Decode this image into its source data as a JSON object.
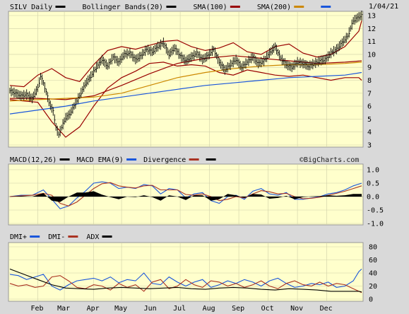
{
  "chart_data": [
    {
      "type": "ohlc",
      "panel": "price",
      "title": "SILV Daily",
      "date_label": "1/04/21",
      "ylim": [
        3,
        13
      ],
      "yticks": [
        3,
        4,
        5,
        6,
        7,
        8,
        9,
        10,
        11,
        12,
        13
      ],
      "grid": true,
      "legend_placement": "top",
      "legend": [
        {
          "label": "SILV Daily",
          "color": "#000000"
        },
        {
          "label": "Bollinger Bands(20)",
          "color": "#000000"
        },
        {
          "label": "SMA(100)",
          "color": "#990000"
        },
        {
          "label": "SMA(200)",
          "color": "#cc8800"
        },
        {
          "label": "",
          "color": "#1a56db"
        }
      ],
      "months": [
        "Feb",
        "Mar",
        "Apr",
        "May",
        "Jun",
        "Jul",
        "Aug",
        "Sep",
        "Oct",
        "Nov",
        "Dec"
      ],
      "x": [
        0,
        4,
        8,
        12,
        16,
        20,
        22,
        24,
        26,
        28,
        31,
        33,
        35,
        38,
        40,
        43,
        46,
        50,
        54,
        58,
        62,
        66,
        70,
        74,
        78,
        82,
        86,
        90,
        94,
        98,
        102,
        106,
        110,
        114,
        118,
        122,
        126,
        130,
        134,
        138,
        142,
        146,
        150,
        154,
        158,
        162,
        166,
        170,
        174,
        178,
        182,
        186,
        190,
        194,
        198,
        202,
        206,
        210,
        214,
        218,
        222,
        226,
        230,
        234,
        238,
        242,
        246,
        250,
        252
      ],
      "close": [
        7.2,
        7.0,
        6.8,
        6.9,
        6.6,
        7.4,
        8.3,
        7.8,
        7.1,
        6.3,
        5.6,
        4.4,
        3.8,
        4.6,
        5.1,
        5.4,
        6.0,
        6.8,
        7.7,
        8.3,
        9.0,
        9.6,
        9.1,
        9.8,
        9.4,
        10.0,
        10.1,
        9.6,
        9.9,
        10.4,
        10.2,
        10.6,
        10.9,
        10.0,
        10.5,
        9.9,
        9.5,
        9.8,
        10.1,
        9.6,
        9.9,
        10.4,
        9.4,
        8.8,
        9.2,
        9.6,
        9.0,
        9.4,
        9.8,
        9.3,
        9.5,
        10.1,
        10.6,
        9.7,
        9.2,
        9.0,
        9.4,
        9.3,
        9.1,
        9.3,
        9.5,
        9.6,
        10.1,
        10.4,
        10.9,
        11.4,
        12.6,
        12.9,
        13.0
      ],
      "series": [
        {
          "name": "Bollinger Bands(20)",
          "role": "upper",
          "color": "#990000",
          "x": [
            0,
            10,
            20,
            30,
            40,
            50,
            60,
            70,
            80,
            90,
            100,
            110,
            120,
            130,
            140,
            150,
            160,
            170,
            180,
            190,
            200,
            210,
            220,
            230,
            240,
            250,
            252
          ],
          "values": [
            7.6,
            7.5,
            8.4,
            8.9,
            8.2,
            7.9,
            9.2,
            10.3,
            10.6,
            10.4,
            10.7,
            11.0,
            11.1,
            10.6,
            10.3,
            10.5,
            10.9,
            10.2,
            10.0,
            10.6,
            10.8,
            10.1,
            9.8,
            10.0,
            10.6,
            11.8,
            12.6
          ]
        },
        {
          "name": "Bollinger Bands(20)",
          "role": "lower",
          "color": "#990000",
          "x": [
            0,
            10,
            20,
            30,
            40,
            50,
            60,
            70,
            80,
            90,
            100,
            110,
            120,
            130,
            140,
            150,
            160,
            170,
            180,
            190,
            200,
            210,
            220,
            230,
            240,
            250,
            252
          ],
          "values": [
            6.5,
            6.4,
            6.3,
            4.8,
            3.6,
            4.4,
            6.0,
            7.4,
            8.2,
            8.7,
            9.3,
            9.4,
            9.1,
            9.2,
            9.1,
            8.6,
            8.4,
            8.8,
            8.6,
            8.4,
            8.3,
            8.4,
            8.2,
            8.0,
            8.2,
            8.2,
            8.0
          ]
        },
        {
          "name": "SMA(100)",
          "color": "#990000",
          "x": [
            0,
            20,
            40,
            60,
            80,
            100,
            120,
            140,
            160,
            180,
            200,
            220,
            240,
            252
          ],
          "values": [
            6.6,
            6.6,
            6.5,
            6.8,
            7.6,
            8.5,
            9.3,
            9.7,
            9.9,
            9.7,
            9.5,
            9.3,
            9.4,
            9.5
          ]
        },
        {
          "name": "SMA(200)",
          "color": "#cc8800",
          "x": [
            0,
            20,
            40,
            60,
            80,
            100,
            120,
            140,
            160,
            180,
            200,
            220,
            240,
            252
          ],
          "values": [
            6.4,
            6.5,
            6.6,
            6.7,
            7.0,
            7.6,
            8.2,
            8.6,
            8.9,
            9.1,
            9.2,
            9.2,
            9.3,
            9.4
          ]
        },
        {
          "name": "",
          "color": "#1a56db",
          "x": [
            0,
            20,
            40,
            60,
            80,
            100,
            120,
            140,
            160,
            180,
            200,
            220,
            240,
            252
          ],
          "values": [
            5.4,
            5.7,
            6.0,
            6.4,
            6.7,
            7.0,
            7.3,
            7.6,
            7.8,
            8.0,
            8.2,
            8.3,
            8.4,
            8.6
          ]
        }
      ]
    },
    {
      "type": "line",
      "panel": "macd",
      "legend": [
        {
          "label": "MACD(12,26)",
          "color": "#000000"
        },
        {
          "label": "MACD EMA(9)",
          "color": "#1a56db"
        },
        {
          "label": "Divergence",
          "color": "#aa3322"
        },
        {
          "label": "",
          "color": "#000000"
        }
      ],
      "watermark": "©BigCharts.com",
      "ylim": [
        -1.0,
        1.0
      ],
      "yticks": [
        1.0,
        0.5,
        0.0,
        -0.5,
        -1.0
      ],
      "yticklabels": [
        "1.0",
        "0.5",
        "0.0",
        "-0.5",
        "-1.0"
      ],
      "series": [
        {
          "name": "MACD(12,26)",
          "color": "#1a56db",
          "x": [
            0,
            8,
            16,
            24,
            30,
            36,
            42,
            48,
            54,
            60,
            66,
            72,
            78,
            84,
            90,
            96,
            102,
            108,
            114,
            120,
            126,
            132,
            138,
            144,
            150,
            156,
            162,
            168,
            174,
            180,
            186,
            192,
            198,
            204,
            210,
            216,
            222,
            228,
            234,
            240,
            246,
            252
          ],
          "values": [
            0.0,
            0.05,
            0.05,
            0.25,
            -0.1,
            -0.45,
            -0.35,
            -0.05,
            0.2,
            0.5,
            0.55,
            0.5,
            0.3,
            0.35,
            0.3,
            0.45,
            0.4,
            0.1,
            0.3,
            0.25,
            -0.05,
            0.1,
            0.15,
            -0.15,
            -0.25,
            0.0,
            0.05,
            -0.1,
            0.2,
            0.3,
            0.1,
            0.05,
            0.15,
            -0.1,
            -0.1,
            -0.05,
            0.0,
            0.1,
            0.15,
            0.25,
            0.4,
            0.5
          ]
        },
        {
          "name": "MACD EMA(9)",
          "color": "#aa3322",
          "x": [
            0,
            8,
            16,
            24,
            30,
            36,
            42,
            48,
            54,
            60,
            66,
            72,
            78,
            84,
            90,
            96,
            102,
            108,
            114,
            120,
            126,
            132,
            138,
            144,
            150,
            156,
            162,
            168,
            174,
            180,
            186,
            192,
            198,
            204,
            210,
            216,
            222,
            228,
            234,
            240,
            246,
            252
          ],
          "values": [
            0.0,
            0.03,
            0.05,
            0.12,
            0.05,
            -0.25,
            -0.35,
            -0.2,
            0.05,
            0.3,
            0.48,
            0.52,
            0.4,
            0.35,
            0.32,
            0.4,
            0.42,
            0.25,
            0.25,
            0.25,
            0.08,
            0.05,
            0.1,
            0.0,
            -0.15,
            -0.1,
            0.0,
            -0.05,
            0.1,
            0.22,
            0.18,
            0.1,
            0.12,
            0.0,
            -0.08,
            -0.06,
            -0.02,
            0.05,
            0.12,
            0.2,
            0.3,
            0.4
          ]
        },
        {
          "name": "Divergence",
          "color": "#000000",
          "type": "bar",
          "x": [
            0,
            8,
            16,
            24,
            30,
            36,
            42,
            48,
            54,
            60,
            66,
            72,
            78,
            84,
            90,
            96,
            102,
            108,
            114,
            120,
            126,
            132,
            138,
            144,
            150,
            156,
            162,
            168,
            174,
            180,
            186,
            192,
            198,
            204,
            210,
            216,
            222,
            228,
            234,
            240,
            246,
            252
          ],
          "values": [
            0.0,
            0.02,
            0.0,
            0.13,
            -0.15,
            -0.2,
            0.0,
            0.15,
            0.15,
            0.2,
            0.07,
            -0.02,
            -0.1,
            0.0,
            -0.02,
            0.05,
            -0.02,
            -0.15,
            0.05,
            0.0,
            -0.13,
            0.05,
            0.05,
            -0.15,
            -0.1,
            0.1,
            0.05,
            -0.05,
            0.1,
            0.08,
            -0.08,
            -0.05,
            0.03,
            -0.1,
            -0.02,
            0.01,
            0.02,
            0.05,
            0.03,
            0.05,
            0.1,
            0.1
          ]
        }
      ]
    },
    {
      "type": "line",
      "panel": "dmi",
      "legend": [
        {
          "label": "DMI+",
          "color": "#1a56db"
        },
        {
          "label": "DMI-",
          "color": "#aa3322"
        },
        {
          "label": "ADX",
          "color": "#000000"
        }
      ],
      "ylim": [
        0,
        80
      ],
      "yticks": [
        0,
        20,
        40,
        60,
        80
      ],
      "series": [
        {
          "name": "DMI+",
          "color": "#1a56db",
          "x": [
            0,
            6,
            12,
            18,
            24,
            30,
            36,
            42,
            48,
            54,
            60,
            66,
            72,
            78,
            84,
            90,
            96,
            102,
            108,
            114,
            120,
            126,
            132,
            138,
            144,
            150,
            156,
            162,
            168,
            174,
            180,
            186,
            192,
            198,
            204,
            210,
            216,
            222,
            228,
            234,
            240,
            246,
            250,
            252
          ],
          "values": [
            38,
            36,
            30,
            34,
            38,
            20,
            14,
            22,
            28,
            30,
            32,
            28,
            34,
            25,
            30,
            28,
            40,
            24,
            22,
            34,
            26,
            20,
            26,
            30,
            18,
            22,
            28,
            24,
            30,
            26,
            20,
            28,
            32,
            24,
            18,
            20,
            24,
            22,
            26,
            18,
            20,
            28,
            42,
            46
          ]
        },
        {
          "name": "DMI-",
          "color": "#aa3322",
          "x": [
            0,
            6,
            12,
            18,
            24,
            30,
            36,
            42,
            48,
            54,
            60,
            66,
            72,
            78,
            84,
            90,
            96,
            102,
            108,
            114,
            120,
            126,
            132,
            138,
            144,
            150,
            156,
            162,
            168,
            174,
            180,
            186,
            192,
            198,
            204,
            210,
            216,
            222,
            228,
            234,
            240,
            246,
            250,
            252
          ],
          "values": [
            24,
            20,
            22,
            18,
            20,
            34,
            36,
            28,
            18,
            16,
            22,
            20,
            14,
            24,
            18,
            22,
            12,
            26,
            30,
            16,
            20,
            30,
            22,
            18,
            28,
            26,
            20,
            24,
            18,
            22,
            28,
            20,
            16,
            24,
            28,
            22,
            20,
            26,
            20,
            24,
            22,
            16,
            12,
            10
          ]
        },
        {
          "name": "ADX",
          "color": "#000000",
          "x": [
            0,
            10,
            20,
            30,
            40,
            50,
            60,
            70,
            80,
            90,
            100,
            110,
            120,
            130,
            140,
            150,
            160,
            170,
            180,
            190,
            200,
            210,
            220,
            230,
            240,
            250,
            252
          ],
          "values": [
            46,
            38,
            30,
            22,
            17,
            16,
            15,
            17,
            18,
            17,
            16,
            17,
            18,
            16,
            15,
            17,
            18,
            17,
            15,
            14,
            16,
            15,
            14,
            12,
            12,
            12,
            11
          ]
        }
      ]
    }
  ]
}
